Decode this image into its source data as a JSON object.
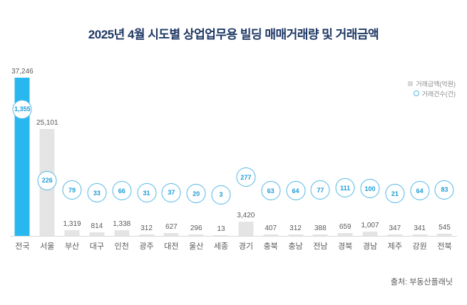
{
  "title": "2025년 4월 시도별 상업업무용 빌딩 매매거래량 및 거래금액",
  "legend": {
    "amount_label": "거래금액(억원)",
    "count_label": "거래건수(건)"
  },
  "source": "출처: 부동산플래닛",
  "colors": {
    "title": "#1f3864",
    "highlight_bar": "#29b7f0",
    "bar": "#e4e4e4",
    "circle_border": "#55b8e6",
    "circle_text": "#1e9cd7"
  },
  "chart_data": {
    "type": "bar",
    "title": "2025년 4월 시도별 상업업무용 빌딩 매매거래량 및 거래금액",
    "categories": [
      "전국",
      "서울",
      "부산",
      "대구",
      "인천",
      "광주",
      "대전",
      "울산",
      "세종",
      "경기",
      "충북",
      "충남",
      "전남",
      "경북",
      "경남",
      "제주",
      "강원",
      "전북"
    ],
    "series": [
      {
        "name": "거래금액(억원)",
        "style": "bar",
        "values": [
          37246,
          25101,
          1319,
          814,
          1338,
          312,
          627,
          296,
          13,
          3420,
          407,
          312,
          388,
          659,
          1007,
          347,
          341,
          545
        ]
      },
      {
        "name": "거래건수(건)",
        "style": "circle-marker",
        "values": [
          1355,
          226,
          79,
          33,
          66,
          31,
          37,
          20,
          3,
          277,
          63,
          64,
          77,
          111,
          100,
          21,
          64,
          83
        ]
      }
    ],
    "highlight_category": "전국",
    "legend_position": "top-right",
    "grid": false,
    "ylim": [
      0,
      40000
    ]
  }
}
